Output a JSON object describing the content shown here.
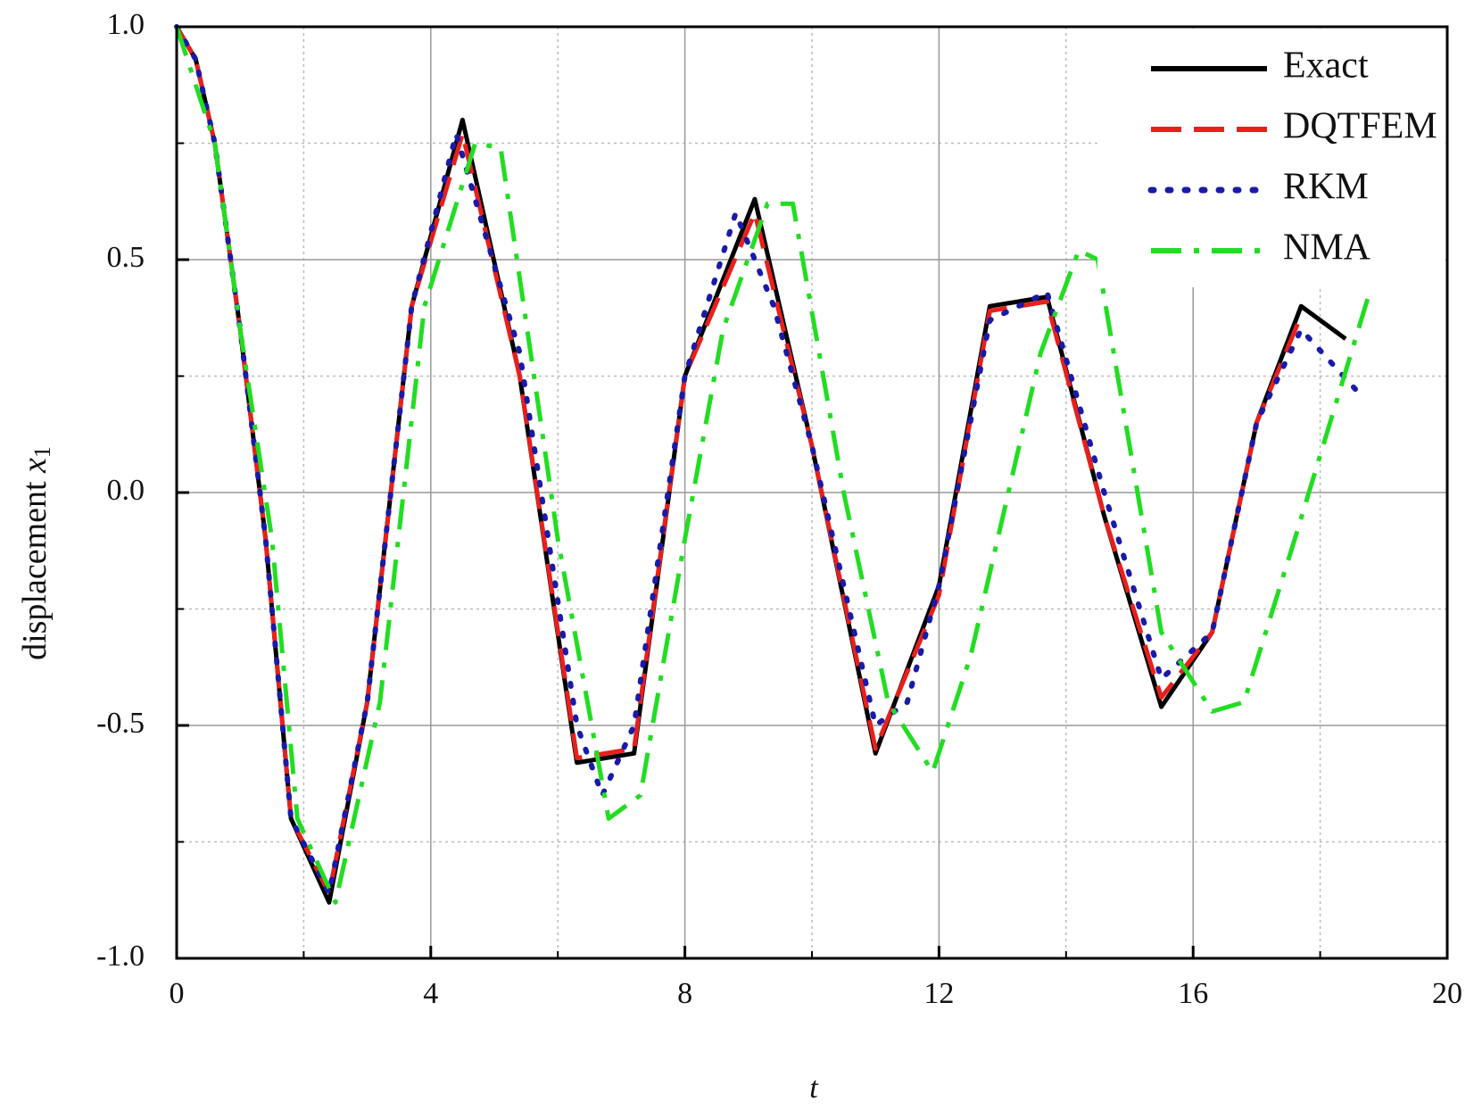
{
  "chart_data": {
    "type": "line",
    "xlabel": "t",
    "ylabel": "displacement ",
    "ylabel_symbol": "x",
    "ylabel_subscript": "1",
    "xlim": [
      0,
      20
    ],
    "ylim": [
      -1.0,
      1.0
    ],
    "xticks": [
      0,
      4,
      8,
      12,
      16,
      20
    ],
    "yticks": [
      {
        "value": -1.0,
        "label": "-1.0"
      },
      {
        "value": -0.5,
        "label": "-0.5"
      },
      {
        "value": 0.0,
        "label": "0.0"
      },
      {
        "value": 0.5,
        "label": "0.5"
      },
      {
        "value": 1.0,
        "label": "1.0"
      }
    ],
    "minor_xticks": [
      2,
      6,
      10,
      14,
      18
    ],
    "minor_yticks": [
      -0.75,
      -0.25,
      0.25,
      0.75
    ],
    "grid": true,
    "legend": "upper right",
    "series": [
      {
        "name": "Exact",
        "color": "#000000",
        "style": "solid",
        "x": [
          0,
          0.3,
          0.6,
          1.0,
          1.4,
          1.8,
          2.4,
          3.0,
          3.7,
          4.5,
          5.4,
          6.3,
          7.2,
          8.0,
          9.1,
          10.0,
          11.0,
          12.0,
          12.8,
          13.7,
          14.6,
          15.5,
          16.3,
          17.0,
          17.7,
          18.4
        ],
        "values": [
          1.0,
          0.93,
          0.75,
          0.35,
          -0.1,
          -0.7,
          -0.88,
          -0.45,
          0.4,
          0.8,
          0.25,
          -0.58,
          -0.56,
          0.25,
          0.63,
          0.1,
          -0.56,
          -0.2,
          0.4,
          0.42,
          -0.05,
          -0.46,
          -0.3,
          0.15,
          0.4,
          0.33
        ]
      },
      {
        "name": "DQTFEM",
        "color": "#e8201c",
        "style": "dash",
        "x": [
          0,
          0.3,
          0.6,
          1.0,
          1.4,
          1.8,
          2.4,
          3.0,
          3.7,
          4.5,
          5.4,
          6.3,
          7.2,
          8.0,
          9.1,
          10.0,
          11.0,
          12.0,
          12.8,
          13.7,
          14.6,
          15.5,
          16.3,
          17.0,
          17.7
        ],
        "values": [
          1.0,
          0.93,
          0.75,
          0.35,
          -0.1,
          -0.7,
          -0.86,
          -0.45,
          0.4,
          0.77,
          0.25,
          -0.57,
          -0.55,
          0.25,
          0.6,
          0.1,
          -0.55,
          -0.22,
          0.39,
          0.41,
          -0.05,
          -0.44,
          -0.3,
          0.15,
          0.38
        ]
      },
      {
        "name": "RKM",
        "color": "#1a1aa8",
        "style": "dot",
        "x": [
          0,
          0.3,
          0.6,
          1.0,
          1.4,
          1.8,
          2.4,
          3.0,
          3.7,
          4.4,
          5.4,
          6.3,
          6.7,
          7.2,
          8.0,
          8.8,
          9.4,
          10.0,
          11.0,
          11.5,
          12.0,
          12.8,
          13.7,
          14.6,
          15.5,
          16.3,
          17.0,
          17.7,
          18.7
        ],
        "values": [
          1.0,
          0.93,
          0.75,
          0.35,
          -0.1,
          -0.7,
          -0.86,
          -0.45,
          0.4,
          0.77,
          0.3,
          -0.5,
          -0.65,
          -0.5,
          0.25,
          0.6,
          0.4,
          0.1,
          -0.5,
          -0.45,
          -0.2,
          0.37,
          0.43,
          0.0,
          -0.4,
          -0.3,
          0.15,
          0.35,
          0.2
        ]
      },
      {
        "name": "NMA",
        "color": "#22dd22",
        "style": "dashdot",
        "x": [
          0,
          0.6,
          1.0,
          1.5,
          1.9,
          2.5,
          3.2,
          3.9,
          4.7,
          5.1,
          6.0,
          6.8,
          7.3,
          8.0,
          8.6,
          9.3,
          9.7,
          10.5,
          11.2,
          11.9,
          12.5,
          13.6,
          14.2,
          14.5,
          15.5,
          16.3,
          16.8,
          17.6,
          18.8
        ],
        "values": [
          1.0,
          0.75,
          0.35,
          -0.1,
          -0.7,
          -0.88,
          -0.45,
          0.4,
          0.75,
          0.74,
          -0.1,
          -0.7,
          -0.65,
          -0.1,
          0.35,
          0.62,
          0.62,
          0.0,
          -0.45,
          -0.6,
          -0.35,
          0.3,
          0.52,
          0.5,
          -0.3,
          -0.47,
          -0.45,
          -0.1,
          0.44
        ]
      }
    ]
  }
}
